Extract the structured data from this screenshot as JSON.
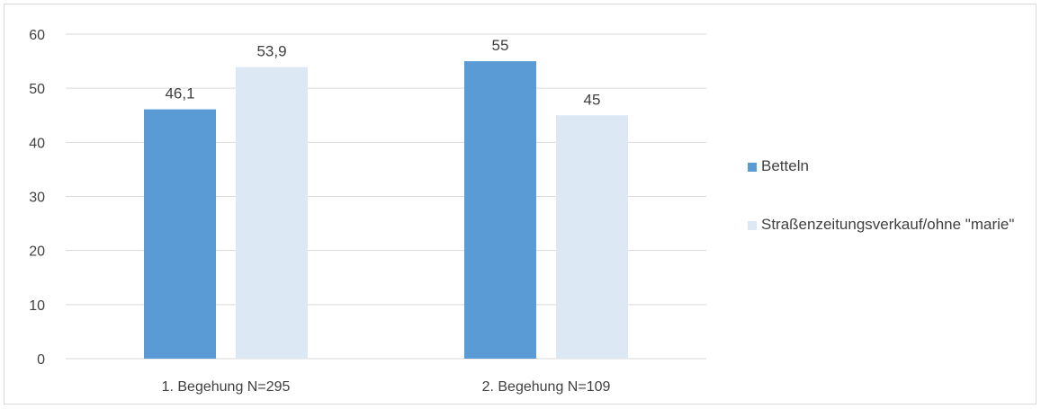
{
  "chart_data": {
    "type": "bar",
    "categories": [
      "1. Begehung N=295",
      "2. Begehung N=109"
    ],
    "series": [
      {
        "name": "Betteln",
        "values": [
          46.1,
          55
        ],
        "labels": [
          "46,1",
          "55"
        ],
        "color": "#5b9bd5"
      },
      {
        "name": "Straßenzeitungsverkauf/ohne \"marie\"",
        "values": [
          53.9,
          45
        ],
        "labels": [
          "53,9",
          "45"
        ],
        "color": "#dde8f5"
      }
    ],
    "yticks": [
      "0",
      "10",
      "20",
      "30",
      "40",
      "50",
      "60"
    ],
    "ylim": [
      0,
      60
    ],
    "grid": true,
    "legend_position": "right"
  },
  "legend": {
    "items": [
      {
        "label": "Betteln",
        "color": "#5b9bd5"
      },
      {
        "label": "Straßenzeitungsverkauf/ohne \"marie\"",
        "color": "#dde8f5"
      }
    ]
  }
}
